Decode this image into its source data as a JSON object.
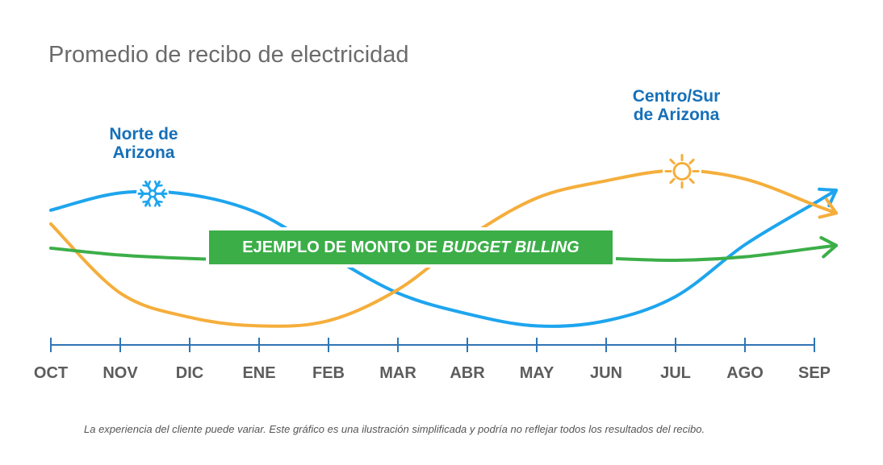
{
  "chart_data": {
    "type": "line",
    "title": "Promedio de recibo de electricidad",
    "categories": [
      "OCT",
      "NOV",
      "DIC",
      "ENE",
      "FEB",
      "MAR",
      "ABR",
      "MAY",
      "JUN",
      "JUL",
      "AGO",
      "SEP"
    ],
    "series": [
      {
        "name": "Norte de Arizona",
        "color": "#1ea5ee",
        "icon": "snowflake-icon",
        "values": [
          78,
          88,
          87,
          76,
          52,
          30,
          18,
          11,
          14,
          28,
          58,
          82
        ]
      },
      {
        "name": "Centro/Sur de Arizona",
        "color": "#f5ae3c",
        "icon": "sun-icon",
        "values": [
          70,
          30,
          16,
          11,
          14,
          32,
          62,
          85,
          95,
          101,
          96,
          81
        ]
      },
      {
        "name": "EJEMPLO DE MONTO DE BUDGET BILLING",
        "color": "#3cae48",
        "values": [
          56,
          52,
          50,
          49,
          50,
          50,
          50,
          50,
          50,
          49,
          51,
          56
        ]
      }
    ],
    "xlabel": "",
    "ylabel": "",
    "ylim": [
      0,
      125
    ],
    "grid": false,
    "legend": "inline"
  },
  "labels": {
    "title": "Promedio de recibo de electricidad",
    "north_line1": "Norte de",
    "north_line2": "Arizona",
    "south_line1": "Centro/Sur",
    "south_line2": "de Arizona",
    "budget_prefix": "EJEMPLO DE MONTO DE",
    "budget_emphasis": "BUDGET BILLING",
    "disclaimer": "La experiencia del cliente puede variar. Este gráfico es una ilustración simplificada y podría no reflejar todos los resultados del recibo."
  },
  "colors": {
    "north": "#1ea5ee",
    "south": "#f5ae3c",
    "budget": "#3cae48",
    "region_text": "#1670b8",
    "axis": "#2f75b5",
    "title_text": "#6b6b6b"
  }
}
